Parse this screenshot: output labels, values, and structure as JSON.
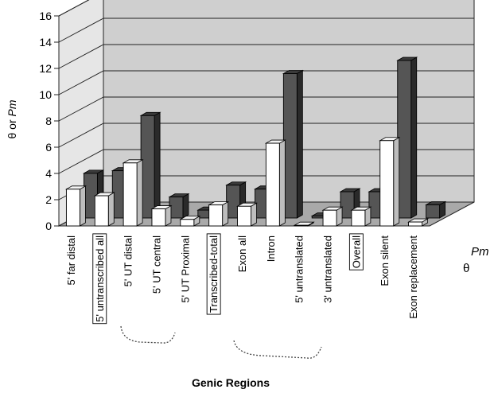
{
  "chart_data": {
    "type": "bar",
    "title": "",
    "xlabel": "Genic Regions",
    "ylabel": "θ or Pm",
    "ylabel_parts": [
      "θ or ",
      "Pm"
    ],
    "ylim": [
      0,
      16
    ],
    "yticks": [
      "0",
      "2",
      "4",
      "6",
      "8",
      "10",
      "12",
      "14",
      "16"
    ],
    "categories": [
      "5' far distal",
      "5' untranscribed all",
      "5' UT distal",
      "5' UT central",
      "5' UT Proximal",
      "Transcribed-total",
      "Exon all",
      "Intron",
      "5' untranslated",
      "3' untranslated",
      "Overall",
      "Exon silent",
      "Exon replacement"
    ],
    "boxed_categories": [
      "5' untranscribed all",
      "Transcribed-total",
      "Overall"
    ],
    "series": [
      {
        "name": "θ",
        "values": [
          2.8,
          2.3,
          4.8,
          1.3,
          0.5,
          1.6,
          1.5,
          6.3,
          0.05,
          1.2,
          1.2,
          6.5,
          0.3
        ],
        "color": "#ffffff"
      },
      {
        "name": "Pm",
        "values": [
          3.4,
          3.6,
          7.8,
          1.6,
          0.6,
          2.5,
          2.2,
          11.0,
          0.15,
          2.0,
          2.0,
          12.0,
          1.0
        ],
        "color": "#555555"
      }
    ],
    "grid": true,
    "legend": "right"
  }
}
